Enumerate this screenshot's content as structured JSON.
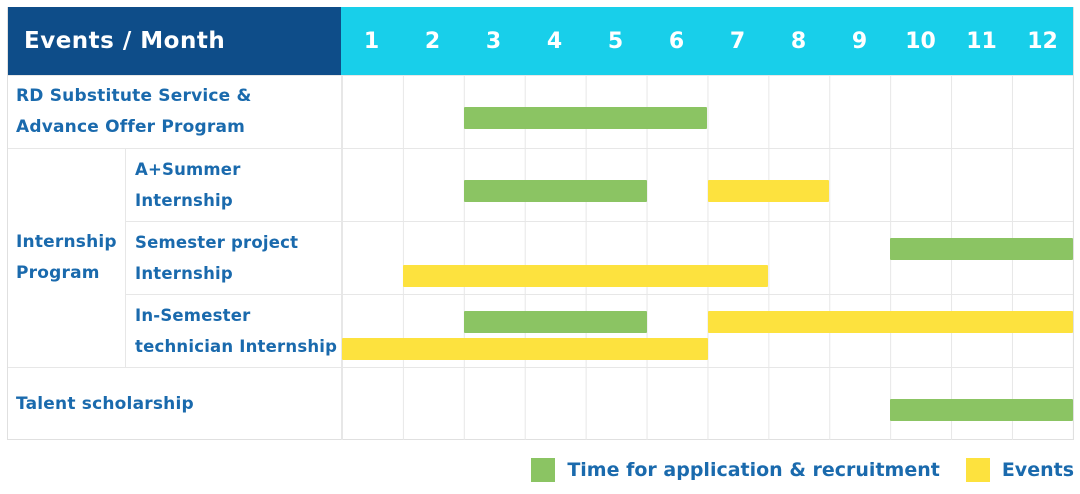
{
  "header": {
    "corner_label": "Events / Month",
    "months": [
      "1",
      "2",
      "3",
      "4",
      "5",
      "6",
      "7",
      "8",
      "9",
      "10",
      "11",
      "12"
    ]
  },
  "legend": {
    "items": [
      {
        "key": "application",
        "label": "Time for application & recruitment",
        "color": "#8BC463"
      },
      {
        "key": "events",
        "label": "Events",
        "color": "#FDE23E"
      }
    ]
  },
  "colors": {
    "header_bg": "#0E4D89",
    "months_bg": "#18CFEA",
    "header_text": "#FFFFFF",
    "label_text": "#1A6AAD",
    "green": "#8BC463",
    "yellow": "#FDE23E",
    "grid": "#E7E7E7"
  },
  "chart_data": {
    "type": "bar",
    "subtype": "gantt",
    "title": "Events / Month",
    "xlabel": "Month",
    "x_ticks": [
      "1",
      "2",
      "3",
      "4",
      "5",
      "6",
      "7",
      "8",
      "9",
      "10",
      "11",
      "12"
    ],
    "x_range": [
      1,
      12
    ],
    "grid": true,
    "legend_position": "bottom-right",
    "series_meaning": {
      "green": "Time for application & recruitment",
      "yellow": "Events"
    },
    "group": {
      "label_lines": [
        "Internship",
        "Program"
      ],
      "start_row": 1,
      "end_row": 3
    },
    "rows": [
      {
        "id": "rd-substitute-service",
        "label_lines": [
          "RD Substitute Service &",
          "Advance Offer Program"
        ],
        "in_group": false,
        "bars": [
          {
            "series": "Time for application & recruitment",
            "color": "green",
            "start_month": 3,
            "end_month": 6,
            "line": 0
          }
        ]
      },
      {
        "id": "a-plus-summer-internship",
        "label_lines": [
          "A+Summer",
          "Internship"
        ],
        "in_group": true,
        "bars": [
          {
            "series": "Time for application & recruitment",
            "color": "green",
            "start_month": 3,
            "end_month": 5,
            "line": 0
          },
          {
            "series": "Events",
            "color": "yellow",
            "start_month": 7,
            "end_month": 8,
            "line": 0
          }
        ]
      },
      {
        "id": "semester-project-internship",
        "label_lines": [
          "Semester project",
          "Internship"
        ],
        "in_group": true,
        "bars": [
          {
            "series": "Time for application & recruitment",
            "color": "green",
            "start_month": 10,
            "end_month": 12,
            "line": 0
          },
          {
            "series": "Events",
            "color": "yellow",
            "start_month": 2,
            "end_month": 7,
            "line": 1
          }
        ]
      },
      {
        "id": "in-semester-technician-internship",
        "label_lines": [
          "In-Semester",
          "technician Internship"
        ],
        "in_group": true,
        "bars": [
          {
            "series": "Time for application & recruitment",
            "color": "green",
            "start_month": 3,
            "end_month": 5,
            "line": 0
          },
          {
            "series": "Events",
            "color": "yellow",
            "start_month": 7,
            "end_month": 12,
            "line": 0
          },
          {
            "series": "Events",
            "color": "yellow",
            "start_month": 1,
            "end_month": 6,
            "line": 1
          }
        ]
      },
      {
        "id": "talent-scholarship",
        "label_lines": [
          "Talent scholarship"
        ],
        "in_group": false,
        "bars": [
          {
            "series": "Time for application & recruitment",
            "color": "green",
            "start_month": 10,
            "end_month": 12,
            "line": 0
          }
        ]
      }
    ]
  }
}
